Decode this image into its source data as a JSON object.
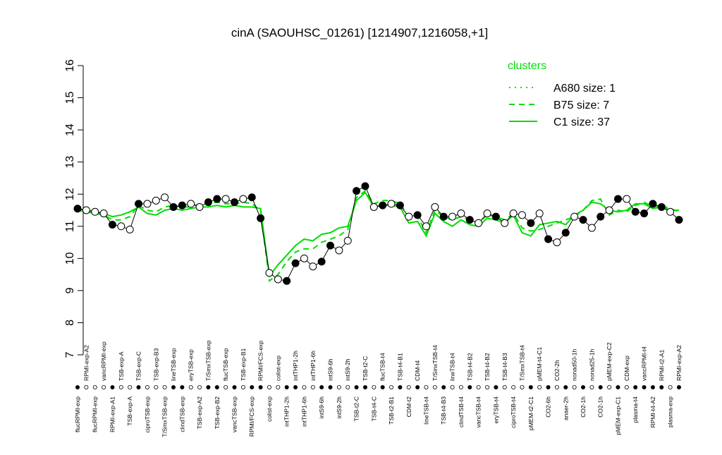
{
  "chart_data": {
    "type": "line",
    "title": "cinA (SAOUHSC_01261) [1214907,1216058,+1]",
    "ylim": [
      7,
      16
    ],
    "yticks": [
      7,
      8,
      9,
      10,
      11,
      12,
      13,
      14,
      15,
      16
    ],
    "categories": [
      "flucRPMI-exp",
      "RPMI-exp-A2",
      "flucRPMI-exp",
      "vancRPMI-exp",
      "RPMI-exp-A1",
      "TSB-exp-A",
      "TSB-exp-A",
      "TSB-exp-C",
      "ciproTSB-exp",
      "TSB-exp-B3",
      "T/SmxTSB-exp",
      "lineTSB-exp",
      "clindTSB-exp",
      "eryTSB-exp",
      "TSB-exp-A2",
      "T/SmxTSB-exp",
      "TSB-exp-B2",
      "flucTSB-exp",
      "vancTSB-exp",
      "TSB-exp-B1",
      "RPMI/FCS-exp",
      "RPMI/FCS-exp",
      "colist-exp",
      "colist-exp",
      "intTHP1-2h",
      "intTHP1-2h",
      "intTHP1-6h",
      "intTHP1-6h",
      "intS9-6h",
      "intS9-6h",
      "intS9-2h",
      "intS9-2h",
      "TSB-t2-C",
      "TSB-t2-C",
      "TSB-t4-C",
      "flucTSB-t4",
      "TSB-t2-B1",
      "TSB-t4-B1",
      "CDM-t2",
      "CDM-t4",
      "lineTSB-t4",
      "T/SmxTSB-t4",
      "TSB-t4-B3",
      "lineTSB-t4",
      "clindTSB-t4",
      "TSB-t4-B2",
      "vancTSB-t4",
      "TSB-t4-B2",
      "eryTSB-t4",
      "TSB-t4-B3",
      "ciproTSB-t4",
      "T/SmxTSB-t4",
      "pMEM-t2-C1",
      "pMEM-t4-C1",
      "CO2-6h",
      "CO2-2h",
      "anaer-2h",
      "nonad50-1h",
      "CO2-1h",
      "nonad25-1h",
      "CO2-1h",
      "pMEM-exp-C2",
      "pMEM-exp-C1",
      "CDM-exp",
      "plasma-t4",
      "vancRPMI-t4",
      "RPMI-t4-A2",
      "RPMI-t2-A1",
      "plasma-exp",
      "RPMI-exp-A2"
    ],
    "values": [
      11.55,
      11.5,
      11.45,
      11.4,
      11.05,
      11.0,
      10.9,
      11.7,
      11.7,
      11.8,
      11.9,
      11.6,
      11.65,
      11.7,
      11.6,
      11.75,
      11.85,
      11.85,
      11.75,
      11.85,
      11.9,
      11.25,
      9.55,
      9.35,
      9.3,
      9.85,
      10.0,
      9.75,
      9.9,
      10.4,
      10.25,
      10.55,
      12.1,
      12.25,
      11.6,
      11.65,
      11.7,
      11.65,
      11.3,
      11.35,
      11.0,
      11.6,
      11.3,
      11.3,
      11.4,
      11.2,
      11.1,
      11.4,
      11.3,
      11.1,
      11.4,
      11.35,
      11.1,
      11.4,
      10.6,
      10.5,
      10.8,
      11.3,
      11.2,
      10.95,
      11.3,
      11.5,
      11.85,
      11.85,
      11.45,
      11.4,
      11.7,
      11.6,
      11.45,
      11.2
    ],
    "filled": [
      true,
      false,
      false,
      false,
      true,
      false,
      false,
      true,
      false,
      false,
      false,
      true,
      true,
      false,
      false,
      true,
      true,
      false,
      true,
      false,
      true,
      true,
      false,
      false,
      true,
      true,
      false,
      false,
      true,
      true,
      false,
      false,
      true,
      true,
      false,
      true,
      false,
      true,
      false,
      true,
      false,
      false,
      true,
      false,
      false,
      true,
      false,
      false,
      true,
      false,
      false,
      false,
      true,
      false,
      true,
      false,
      true,
      false,
      true,
      false,
      true,
      false,
      true,
      false,
      true,
      true,
      true,
      true,
      false,
      true
    ],
    "legend_title": "clusters",
    "color": "#00dd00",
    "series": [
      {
        "name": "A680 size: 1",
        "dash": "2,6",
        "values": [
          null,
          null,
          null,
          null,
          null,
          null,
          null,
          null,
          null,
          null,
          null,
          null,
          null,
          null,
          null,
          null,
          null,
          null,
          null,
          null,
          null,
          null,
          null,
          null,
          null,
          null,
          null,
          null,
          null,
          null,
          null,
          null,
          null,
          null,
          null,
          null,
          null,
          null,
          null,
          null,
          null,
          null,
          null,
          null,
          null,
          null,
          null,
          null,
          null,
          null,
          null,
          null,
          null,
          null,
          null,
          null,
          null,
          null,
          null,
          null,
          null,
          null,
          null,
          null,
          null,
          null,
          null,
          null,
          null,
          null
        ]
      },
      {
        "name": "B75 size: 7",
        "dash": "8,6",
        "values": [
          11.5,
          11.45,
          11.4,
          11.35,
          11.2,
          11.2,
          11.3,
          11.65,
          11.5,
          11.45,
          11.6,
          11.65,
          11.6,
          11.6,
          11.7,
          11.7,
          11.75,
          11.7,
          11.7,
          11.75,
          11.7,
          11.5,
          9.3,
          9.5,
          9.9,
          10.2,
          10.3,
          10.3,
          10.5,
          10.6,
          10.7,
          10.9,
          11.9,
          12.1,
          11.7,
          11.8,
          11.8,
          11.7,
          11.3,
          11.3,
          10.8,
          11.5,
          11.3,
          11.2,
          11.3,
          11.2,
          11.1,
          11.35,
          11.3,
          11.2,
          11.4,
          10.95,
          10.85,
          10.9,
          11.0,
          11.1,
          11.2,
          11.3,
          11.5,
          11.8,
          11.85,
          11.35,
          11.5,
          11.45,
          11.65,
          11.75,
          11.6,
          11.65,
          11.55,
          11.45
        ]
      },
      {
        "name": "C1 size: 37",
        "dash": "none",
        "values": [
          11.55,
          11.5,
          11.45,
          11.4,
          11.3,
          11.35,
          11.45,
          11.6,
          11.4,
          11.35,
          11.5,
          11.55,
          11.5,
          11.55,
          11.6,
          11.6,
          11.65,
          11.6,
          11.65,
          11.6,
          11.6,
          11.55,
          9.45,
          9.8,
          10.1,
          10.4,
          10.6,
          10.55,
          10.75,
          10.8,
          10.95,
          11.0,
          11.8,
          12.05,
          11.6,
          11.65,
          11.65,
          11.6,
          11.1,
          11.15,
          10.7,
          11.4,
          11.15,
          11.0,
          11.2,
          11.05,
          11.0,
          11.25,
          11.2,
          11.1,
          11.35,
          10.8,
          10.7,
          11.05,
          11.1,
          11.15,
          11.05,
          11.35,
          11.5,
          11.75,
          11.7,
          11.5,
          11.45,
          11.5,
          11.7,
          11.7,
          11.55,
          11.6,
          11.5,
          11.5
        ]
      }
    ]
  }
}
